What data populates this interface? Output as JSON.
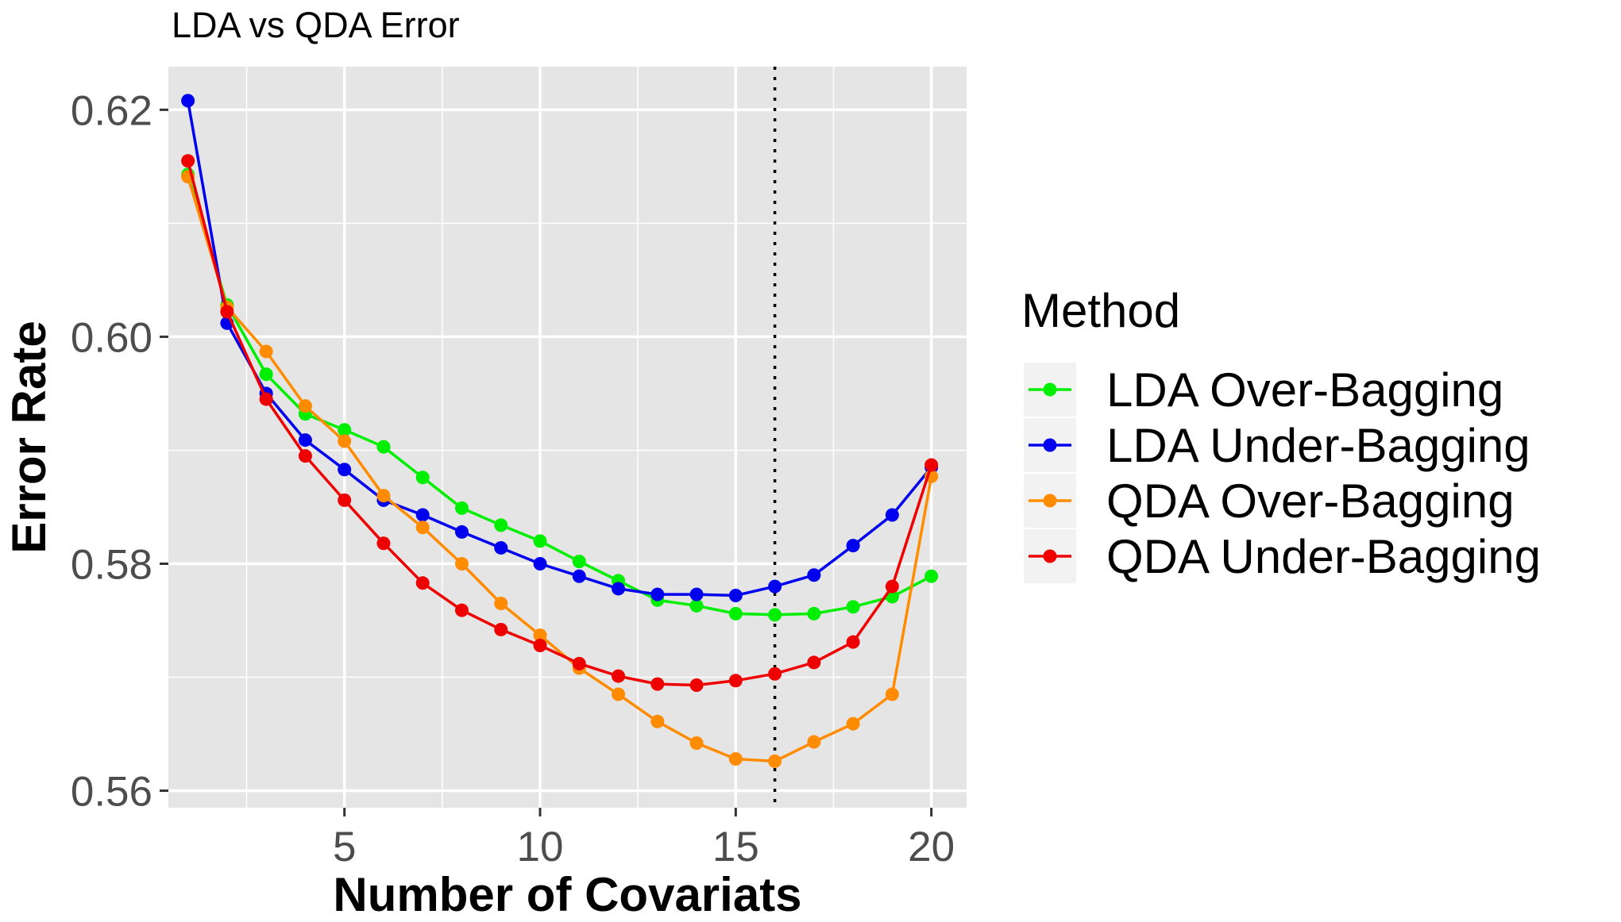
{
  "chart_data": {
    "type": "line",
    "title": "LDA vs QDA Error",
    "xlabel": "Number of Covariats",
    "ylabel": "Error Rate",
    "xlim": [
      0.5,
      20.9
    ],
    "ylim": [
      0.5585,
      0.6238
    ],
    "x_ticks": [
      5,
      10,
      15,
      20
    ],
    "x_tick_labels": [
      "5",
      "10",
      "15",
      "20"
    ],
    "y_ticks": [
      0.56,
      0.58,
      0.6,
      0.62
    ],
    "y_tick_labels": [
      "0.56",
      "0.58",
      "0.60",
      "0.62"
    ],
    "x_minor_ticks": [
      2.5,
      7.5,
      12.5,
      17.5
    ],
    "y_minor_ticks": [
      0.57,
      0.59,
      0.61
    ],
    "grid": true,
    "vline": {
      "x": 16,
      "style": "dotted",
      "color": "#000000"
    },
    "legend": {
      "title": "Method",
      "position": "right"
    },
    "x": [
      1,
      2,
      3,
      4,
      5,
      6,
      7,
      8,
      9,
      10,
      11,
      12,
      13,
      14,
      15,
      16,
      17,
      18,
      19,
      20
    ],
    "series": [
      {
        "name": "LDA Over-Bagging",
        "color": "#00ee00",
        "values": [
          0.6143,
          0.6028,
          0.5967,
          0.5932,
          0.5918,
          0.5903,
          0.5876,
          0.5849,
          0.5834,
          0.582,
          0.5802,
          0.5785,
          0.5768,
          0.5763,
          0.5756,
          0.5755,
          0.5756,
          0.5762,
          0.5771,
          0.5789
        ]
      },
      {
        "name": "LDA Under-Bagging",
        "color": "#0000ee",
        "values": [
          0.6208,
          0.6012,
          0.595,
          0.5909,
          0.5883,
          0.5856,
          0.5843,
          0.5828,
          0.5814,
          0.58,
          0.5789,
          0.5778,
          0.5773,
          0.5773,
          0.5772,
          0.578,
          0.579,
          0.5816,
          0.5843,
          0.5885
        ]
      },
      {
        "name": "QDA Over-Bagging",
        "color": "#ff8c00",
        "values": [
          0.6141,
          0.6026,
          0.5987,
          0.5939,
          0.5908,
          0.586,
          0.5832,
          0.58,
          0.5765,
          0.5737,
          0.5708,
          0.5685,
          0.5661,
          0.5642,
          0.5628,
          0.5626,
          0.5643,
          0.5659,
          0.5685,
          0.5877
        ]
      },
      {
        "name": "QDA Under-Bagging",
        "color": "#ee0000",
        "values": [
          0.6155,
          0.6022,
          0.5945,
          0.5895,
          0.5856,
          0.5818,
          0.5783,
          0.5759,
          0.5742,
          0.5728,
          0.5712,
          0.5701,
          0.5694,
          0.5693,
          0.5697,
          0.5703,
          0.5713,
          0.5731,
          0.578,
          0.5887
        ]
      }
    ]
  }
}
